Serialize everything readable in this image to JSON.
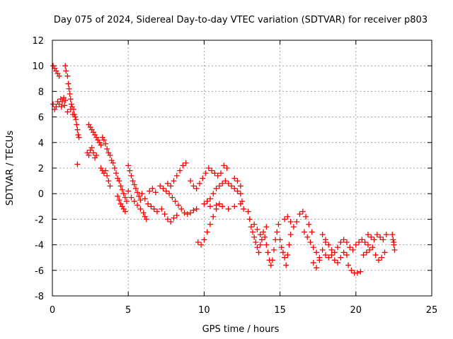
{
  "chart_data": {
    "type": "scatter",
    "title": "Day 075 of 2024, Sidereal Day-to-day VTEC variation (SDTVAR) for receiver p803",
    "xlabel": "GPS time / hours",
    "ylabel": "SDTVAR / TECUs",
    "xlim": [
      0,
      25
    ],
    "ylim": [
      -8,
      12
    ],
    "xticks": [
      "0",
      "5",
      "10",
      "15",
      "20",
      "25"
    ],
    "yticks": [
      "-8",
      "-6",
      "-4",
      "-2",
      "0",
      "2",
      "4",
      "6",
      "8",
      "10",
      "12"
    ],
    "grid": true,
    "marker": "+",
    "color": "#ff0000",
    "series": [
      {
        "name": "SDTVAR",
        "points": [
          [
            0.05,
            10.0
          ],
          [
            0.15,
            9.8
          ],
          [
            0.25,
            9.6
          ],
          [
            0.35,
            9.4
          ],
          [
            0.45,
            9.2
          ],
          [
            0.05,
            7.0
          ],
          [
            0.15,
            6.6
          ],
          [
            0.25,
            6.8
          ],
          [
            0.35,
            7.2
          ],
          [
            0.45,
            7.0
          ],
          [
            0.55,
            7.4
          ],
          [
            0.65,
            7.2
          ],
          [
            0.75,
            7.5
          ],
          [
            0.85,
            7.3
          ],
          [
            0.85,
            10.0
          ],
          [
            0.9,
            9.6
          ],
          [
            1.0,
            9.2
          ],
          [
            1.05,
            8.6
          ],
          [
            1.1,
            8.2
          ],
          [
            1.15,
            7.8
          ],
          [
            1.2,
            7.4
          ],
          [
            1.25,
            7.0
          ],
          [
            1.3,
            6.8
          ],
          [
            1.4,
            6.6
          ],
          [
            1.45,
            6.2
          ],
          [
            1.55,
            5.8
          ],
          [
            1.6,
            5.4
          ],
          [
            1.65,
            5.0
          ],
          [
            1.7,
            4.6
          ],
          [
            1.75,
            4.4
          ],
          [
            0.6,
            6.8
          ],
          [
            0.8,
            6.9
          ],
          [
            1.0,
            6.4
          ],
          [
            1.2,
            6.6
          ],
          [
            1.35,
            6.2
          ],
          [
            1.5,
            6.0
          ],
          [
            1.65,
            2.3
          ],
          [
            2.4,
            5.4
          ],
          [
            2.5,
            5.2
          ],
          [
            2.6,
            5.0
          ],
          [
            2.7,
            4.8
          ],
          [
            2.8,
            4.6
          ],
          [
            2.9,
            4.4
          ],
          [
            2.3,
            3.2
          ],
          [
            2.4,
            3.0
          ],
          [
            2.5,
            3.4
          ],
          [
            2.6,
            3.6
          ],
          [
            2.7,
            3.2
          ],
          [
            2.8,
            2.8
          ],
          [
            2.9,
            3.0
          ],
          [
            3.0,
            4.2
          ],
          [
            3.1,
            4.0
          ],
          [
            3.2,
            3.8
          ],
          [
            3.3,
            4.4
          ],
          [
            3.4,
            4.2
          ],
          [
            3.5,
            3.9
          ],
          [
            3.6,
            3.5
          ],
          [
            3.7,
            3.2
          ],
          [
            3.8,
            3.0
          ],
          [
            3.9,
            2.6
          ],
          [
            3.2,
            2.0
          ],
          [
            3.3,
            1.8
          ],
          [
            3.4,
            1.6
          ],
          [
            3.5,
            1.8
          ],
          [
            3.6,
            1.4
          ],
          [
            3.7,
            1.0
          ],
          [
            3.8,
            0.6
          ],
          [
            4.0,
            2.4
          ],
          [
            4.1,
            2.0
          ],
          [
            4.2,
            1.6
          ],
          [
            4.3,
            1.2
          ],
          [
            4.4,
            1.0
          ],
          [
            4.5,
            0.6
          ],
          [
            4.6,
            0.3
          ],
          [
            4.7,
            0.0
          ],
          [
            4.8,
            -0.3
          ],
          [
            4.9,
            -0.6
          ],
          [
            4.3,
            -0.2
          ],
          [
            4.4,
            -0.5
          ],
          [
            4.5,
            -0.8
          ],
          [
            4.6,
            -1.0
          ],
          [
            4.7,
            -1.2
          ],
          [
            4.8,
            -1.4
          ],
          [
            5.0,
            2.2
          ],
          [
            5.1,
            1.8
          ],
          [
            5.2,
            1.4
          ],
          [
            5.3,
            1.0
          ],
          [
            5.4,
            0.7
          ],
          [
            5.5,
            0.4
          ],
          [
            5.6,
            0.1
          ],
          [
            5.7,
            -0.2
          ],
          [
            5.8,
            -0.5
          ],
          [
            5.0,
            0.2
          ],
          [
            5.2,
            -0.3
          ],
          [
            5.4,
            -0.6
          ],
          [
            5.6,
            -0.9
          ],
          [
            5.8,
            -1.2
          ],
          [
            6.0,
            -1.5
          ],
          [
            6.1,
            -1.8
          ],
          [
            6.2,
            -2.0
          ],
          [
            5.9,
            0.0
          ],
          [
            6.1,
            -0.4
          ],
          [
            6.3,
            -0.8
          ],
          [
            6.5,
            -1.0
          ],
          [
            6.7,
            -1.2
          ],
          [
            6.9,
            -1.4
          ],
          [
            6.4,
            0.2
          ],
          [
            6.6,
            0.4
          ],
          [
            6.8,
            0.1
          ],
          [
            7.1,
            0.6
          ],
          [
            7.3,
            0.4
          ],
          [
            7.5,
            0.2
          ],
          [
            7.7,
            0.0
          ],
          [
            7.9,
            -0.3
          ],
          [
            8.1,
            -0.6
          ],
          [
            8.3,
            -0.9
          ],
          [
            8.5,
            -1.2
          ],
          [
            8.7,
            -1.5
          ],
          [
            8.9,
            -1.6
          ],
          [
            9.1,
            -1.5
          ],
          [
            9.3,
            -1.3
          ],
          [
            9.5,
            -1.2
          ],
          [
            7.2,
            -1.2
          ],
          [
            7.4,
            -1.6
          ],
          [
            7.6,
            -2.0
          ],
          [
            7.8,
            -2.2
          ],
          [
            8.0,
            -1.9
          ],
          [
            8.2,
            -1.7
          ],
          [
            7.6,
            0.8
          ],
          [
            7.8,
            0.6
          ],
          [
            8.0,
            1.0
          ],
          [
            8.2,
            1.4
          ],
          [
            8.4,
            1.8
          ],
          [
            8.6,
            2.2
          ],
          [
            8.8,
            2.4
          ],
          [
            9.1,
            1.0
          ],
          [
            9.3,
            0.6
          ],
          [
            9.5,
            0.4
          ],
          [
            9.7,
            0.8
          ],
          [
            9.9,
            1.2
          ],
          [
            10.1,
            1.6
          ],
          [
            10.3,
            2.0
          ],
          [
            10.5,
            1.8
          ],
          [
            10.7,
            1.6
          ],
          [
            10.9,
            1.4
          ],
          [
            11.1,
            1.6
          ],
          [
            11.3,
            2.2
          ],
          [
            11.5,
            2.0
          ],
          [
            9.6,
            -3.8
          ],
          [
            9.8,
            -4.0
          ],
          [
            10.0,
            -3.6
          ],
          [
            10.2,
            -3.0
          ],
          [
            10.4,
            -2.4
          ],
          [
            10.6,
            -1.8
          ],
          [
            10.8,
            -1.2
          ],
          [
            11.0,
            -0.8
          ],
          [
            10.2,
            -0.6
          ],
          [
            10.4,
            -0.4
          ],
          [
            10.6,
            0.0
          ],
          [
            10.8,
            0.4
          ],
          [
            11.0,
            0.6
          ],
          [
            11.2,
            0.8
          ],
          [
            11.4,
            1.0
          ],
          [
            11.6,
            0.8
          ],
          [
            11.8,
            0.6
          ],
          [
            12.0,
            0.4
          ],
          [
            12.2,
            0.2
          ],
          [
            12.4,
            0.0
          ],
          [
            10.0,
            -0.8
          ],
          [
            10.4,
            -1.0
          ],
          [
            10.8,
            -0.9
          ],
          [
            11.2,
            -1.0
          ],
          [
            11.6,
            -1.2
          ],
          [
            12.0,
            -1.0
          ],
          [
            12.4,
            -0.8
          ],
          [
            12.0,
            1.2
          ],
          [
            12.2,
            1.0
          ],
          [
            12.4,
            0.6
          ],
          [
            12.5,
            -0.6
          ],
          [
            12.6,
            -1.2
          ],
          [
            12.9,
            -1.4
          ],
          [
            13.0,
            -2.0
          ],
          [
            13.1,
            -2.6
          ],
          [
            13.2,
            -3.0
          ],
          [
            13.3,
            -3.4
          ],
          [
            13.4,
            -3.8
          ],
          [
            13.5,
            -4.2
          ],
          [
            13.6,
            -4.6
          ],
          [
            13.7,
            -4.0
          ],
          [
            13.8,
            -3.6
          ],
          [
            13.3,
            -2.4
          ],
          [
            13.5,
            -2.8
          ],
          [
            13.7,
            -3.2
          ],
          [
            13.9,
            -3.0
          ],
          [
            14.1,
            -2.6
          ],
          [
            14.0,
            -3.4
          ],
          [
            14.1,
            -4.0
          ],
          [
            14.2,
            -4.6
          ],
          [
            14.3,
            -5.2
          ],
          [
            14.4,
            -5.6
          ],
          [
            14.5,
            -5.2
          ],
          [
            14.6,
            -4.4
          ],
          [
            14.7,
            -3.6
          ],
          [
            14.8,
            -3.0
          ],
          [
            14.9,
            -2.4
          ],
          [
            15.0,
            -3.6
          ],
          [
            15.1,
            -4.2
          ],
          [
            15.2,
            -4.6
          ],
          [
            15.3,
            -5.0
          ],
          [
            15.4,
            -5.6
          ],
          [
            15.5,
            -4.8
          ],
          [
            15.6,
            -4.0
          ],
          [
            15.7,
            -3.2
          ],
          [
            15.3,
            -2.0
          ],
          [
            15.5,
            -1.8
          ],
          [
            15.7,
            -2.2
          ],
          [
            15.9,
            -2.6
          ],
          [
            16.1,
            -2.2
          ],
          [
            16.3,
            -1.6
          ],
          [
            16.5,
            -1.4
          ],
          [
            16.7,
            -1.8
          ],
          [
            16.9,
            -2.4
          ],
          [
            17.1,
            -3.0
          ],
          [
            16.6,
            -3.0
          ],
          [
            16.8,
            -3.4
          ],
          [
            17.0,
            -3.8
          ],
          [
            17.2,
            -4.2
          ],
          [
            17.4,
            -4.6
          ],
          [
            17.6,
            -5.0
          ],
          [
            17.8,
            -4.4
          ],
          [
            18.0,
            -3.8
          ],
          [
            17.2,
            -5.4
          ],
          [
            17.4,
            -5.8
          ],
          [
            17.6,
            -5.2
          ],
          [
            17.8,
            -3.2
          ],
          [
            18.0,
            -3.6
          ],
          [
            18.2,
            -4.0
          ],
          [
            18.4,
            -4.4
          ],
          [
            18.6,
            -4.6
          ],
          [
            18.8,
            -4.2
          ],
          [
            19.0,
            -3.8
          ],
          [
            19.2,
            -3.6
          ],
          [
            19.4,
            -3.8
          ],
          [
            19.6,
            -4.2
          ],
          [
            19.8,
            -4.4
          ],
          [
            20.0,
            -4.0
          ],
          [
            20.2,
            -3.8
          ],
          [
            20.4,
            -3.6
          ],
          [
            20.6,
            -3.8
          ],
          [
            20.8,
            -4.0
          ],
          [
            18.0,
            -4.8
          ],
          [
            18.2,
            -5.0
          ],
          [
            18.4,
            -4.8
          ],
          [
            18.6,
            -5.2
          ],
          [
            18.8,
            -5.4
          ],
          [
            19.0,
            -5.0
          ],
          [
            19.2,
            -4.6
          ],
          [
            19.4,
            -4.8
          ],
          [
            19.5,
            -5.6
          ],
          [
            19.7,
            -6.0
          ],
          [
            19.9,
            -6.2
          ],
          [
            20.1,
            -6.2
          ],
          [
            20.3,
            -6.1
          ],
          [
            20.5,
            -4.8
          ],
          [
            20.7,
            -4.6
          ],
          [
            20.9,
            -4.4
          ],
          [
            21.1,
            -4.2
          ],
          [
            21.3,
            -4.8
          ],
          [
            21.5,
            -5.2
          ],
          [
            21.7,
            -5.0
          ],
          [
            21.9,
            -4.6
          ],
          [
            20.8,
            -3.2
          ],
          [
            21.0,
            -3.4
          ],
          [
            21.2,
            -3.6
          ],
          [
            21.4,
            -3.2
          ],
          [
            21.6,
            -3.4
          ],
          [
            21.8,
            -3.6
          ],
          [
            22.0,
            -3.2
          ],
          [
            22.4,
            -3.2
          ],
          [
            22.45,
            -3.6
          ],
          [
            22.5,
            -4.0
          ],
          [
            22.55,
            -4.4
          ],
          [
            22.5,
            -3.8
          ]
        ]
      }
    ]
  }
}
